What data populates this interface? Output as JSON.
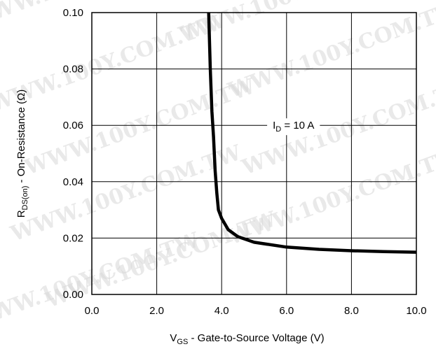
{
  "chart_data": {
    "type": "line",
    "title": "",
    "xlabel": {
      "main": "V",
      "sub": "GS",
      "rest": " - Gate-to-Source Voltage (V)"
    },
    "ylabel": {
      "main": "R",
      "sub": "DS(on)",
      "rest": " - On-Resistance (Ω)"
    },
    "xlim": [
      0,
      10
    ],
    "ylim": [
      0,
      0.1
    ],
    "x_ticks": [
      0,
      2,
      4,
      6,
      8,
      10
    ],
    "x_tick_labels": [
      "0.0",
      "2.0",
      "4.0",
      "6.0",
      "8.0",
      "10.0"
    ],
    "y_ticks": [
      0,
      0.02,
      0.04,
      0.06,
      0.08,
      0.1
    ],
    "y_tick_labels": [
      "0.00",
      "0.02",
      "0.04",
      "0.06",
      "0.08",
      "0.10"
    ],
    "grid": true,
    "annotation": {
      "main": "I",
      "sub": "D",
      "rest": " = 10 A",
      "x": 7.0,
      "y": 0.06
    },
    "series": [
      {
        "x": [
          3.6,
          3.65,
          3.7,
          3.75,
          3.8,
          3.85,
          3.9,
          4.0,
          4.2,
          4.5,
          5.0,
          6.0,
          7.0,
          8.0,
          9.0,
          10.0
        ],
        "y": [
          0.1,
          0.08,
          0.065,
          0.056,
          0.044,
          0.036,
          0.03,
          0.027,
          0.023,
          0.0205,
          0.0185,
          0.0168,
          0.016,
          0.0155,
          0.0152,
          0.015
        ]
      }
    ],
    "watermark": "WWW.100Y.COM.TW",
    "colors": {
      "line": "#000000",
      "grid": "#000000",
      "watermark": "#d8d8d8"
    }
  }
}
